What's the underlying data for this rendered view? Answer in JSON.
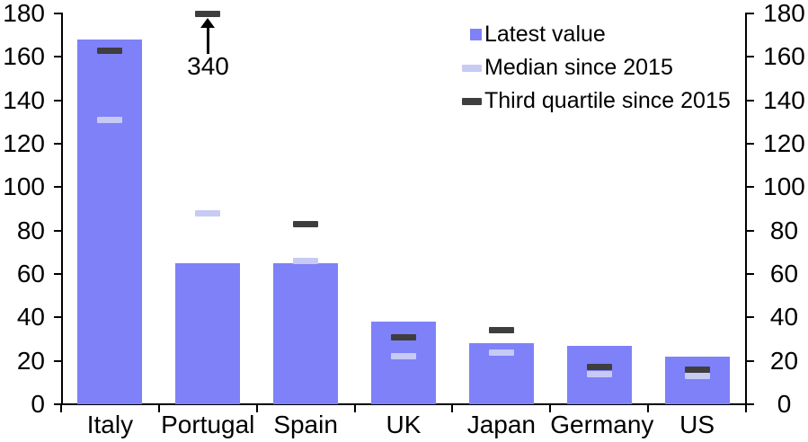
{
  "chart_data": {
    "type": "bar",
    "title": "",
    "xlabel": "",
    "ylabel": "",
    "categories": [
      "Italy",
      "Portugal",
      "Spain",
      "UK",
      "Japan",
      "Germany",
      "US"
    ],
    "series": [
      {
        "name": "Latest value",
        "style": "bar",
        "color": "#7F81F8",
        "values": [
          168,
          65,
          65,
          38,
          28,
          27,
          22
        ]
      },
      {
        "name": "Median since 2015",
        "style": "dash-marker",
        "color": "#C7CAF3",
        "values": [
          131,
          88,
          66,
          22,
          24,
          14,
          13
        ]
      },
      {
        "name": "Third quartile since 2015",
        "style": "dash-marker",
        "color": "#3E3E3E",
        "values": [
          163,
          340,
          83,
          31,
          34,
          17,
          16
        ]
      }
    ],
    "ylim": [
      0,
      180
    ],
    "yticks": [
      0,
      20,
      40,
      60,
      80,
      100,
      120,
      140,
      160,
      180
    ],
    "right_axis_mirror": true,
    "grid": false,
    "legend_position": "top-right-inside",
    "annotation": {
      "category": "Portugal",
      "series": "Third quartile since 2015",
      "label": "340",
      "note": "off-scale value; marker clamped at axis top with upward arrow"
    }
  },
  "legend": {
    "items": [
      {
        "label": "Latest value"
      },
      {
        "label": "Median since 2015"
      },
      {
        "label": "Third quartile since 2015"
      }
    ]
  }
}
